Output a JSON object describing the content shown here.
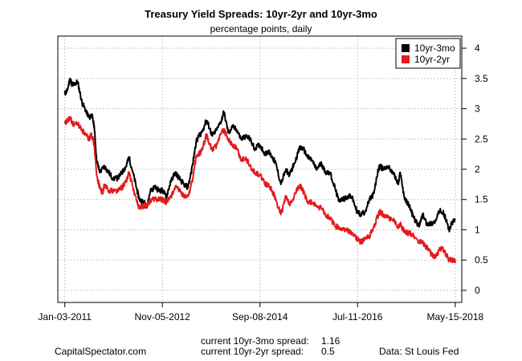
{
  "chart_data": {
    "type": "line",
    "title": "Treasury Yield Spreads: 10yr-2yr and 10yr-3mo",
    "subtitle": "percentage points, daily",
    "xlabel": "",
    "ylabel": "",
    "x_ticks": [
      "Jan-03-2011",
      "Nov-05-2012",
      "Sep-08-2014",
      "Jul-11-2016",
      "May-15-2018"
    ],
    "y_ticks": [
      "0",
      "0.5",
      "1",
      "1.5",
      "2",
      "2.5",
      "3",
      "3.5",
      "4"
    ],
    "ylim": [
      -0.2,
      4.2
    ],
    "grid": true,
    "legend_position": "top-right",
    "series": [
      {
        "name": "10yr-3mo",
        "color": "#000000",
        "x": [
          "2011-01-03",
          "2011-01-20",
          "2011-02-08",
          "2011-02-22",
          "2011-03-10",
          "2011-04-01",
          "2011-05-02",
          "2011-06-01",
          "2011-06-20",
          "2011-07-08",
          "2011-07-25",
          "2011-08-10",
          "2011-09-01",
          "2011-10-03",
          "2011-11-01",
          "2011-12-01",
          "2012-01-03",
          "2012-02-01",
          "2012-03-01",
          "2012-03-20",
          "2012-04-16",
          "2012-05-15",
          "2012-06-01",
          "2012-07-02",
          "2012-07-25",
          "2012-08-15",
          "2012-09-14",
          "2012-10-15",
          "2012-11-05",
          "2012-12-03",
          "2013-01-02",
          "2013-02-01",
          "2013-03-01",
          "2013-04-01",
          "2013-05-01",
          "2013-06-03",
          "2013-06-25",
          "2013-07-15",
          "2013-08-01",
          "2013-09-03",
          "2013-09-16",
          "2013-10-15",
          "2013-11-15",
          "2013-12-16",
          "2014-01-02",
          "2014-02-03",
          "2014-03-03",
          "2014-04-01",
          "2014-05-01",
          "2014-06-02",
          "2014-07-01",
          "2014-08-01",
          "2014-09-08",
          "2014-10-15",
          "2014-11-03",
          "2014-12-01",
          "2014-12-26",
          "2015-01-30",
          "2015-03-06",
          "2015-04-01",
          "2015-05-01",
          "2015-06-10",
          "2015-07-01",
          "2015-08-03",
          "2015-09-01",
          "2015-10-01",
          "2015-11-06",
          "2015-12-01",
          "2016-01-04",
          "2016-02-11",
          "2016-03-01",
          "2016-04-01",
          "2016-05-02",
          "2016-06-01",
          "2016-07-08",
          "2016-08-01",
          "2016-09-01",
          "2016-10-03",
          "2016-11-01",
          "2016-12-01",
          "2016-12-15",
          "2017-01-03",
          "2017-02-01",
          "2017-03-13",
          "2017-04-18",
          "2017-05-01",
          "2017-06-01",
          "2017-07-03",
          "2017-08-01",
          "2017-09-08",
          "2017-10-02",
          "2017-11-01",
          "2017-12-01",
          "2018-01-02",
          "2018-02-01",
          "2018-03-01",
          "2018-04-02",
          "2018-05-01",
          "2018-05-15"
        ],
        "values": [
          3.25,
          3.3,
          3.5,
          3.4,
          3.4,
          3.45,
          3.1,
          2.95,
          2.85,
          2.9,
          2.7,
          2.15,
          1.95,
          2.05,
          1.95,
          1.85,
          1.85,
          1.95,
          2.05,
          2.2,
          1.95,
          1.65,
          1.5,
          1.45,
          1.4,
          1.65,
          1.7,
          1.65,
          1.65,
          1.55,
          1.8,
          1.95,
          1.85,
          1.75,
          1.7,
          2.1,
          2.45,
          2.55,
          2.6,
          2.8,
          2.75,
          2.55,
          2.65,
          2.8,
          2.95,
          2.6,
          2.7,
          2.65,
          2.5,
          2.55,
          2.5,
          2.35,
          2.4,
          2.25,
          2.3,
          2.2,
          2.1,
          1.75,
          2.0,
          1.9,
          2.1,
          2.35,
          2.35,
          2.2,
          2.15,
          2.0,
          2.1,
          1.95,
          1.95,
          1.65,
          1.5,
          1.5,
          1.55,
          1.55,
          1.3,
          1.25,
          1.3,
          1.5,
          1.6,
          2.0,
          2.05,
          2.0,
          2.05,
          1.95,
          1.75,
          1.95,
          1.5,
          1.4,
          1.2,
          1.05,
          1.25,
          1.1,
          1.1,
          1.15,
          1.35,
          1.25,
          1.0,
          1.15,
          1.16
        ]
      },
      {
        "name": "10yr-2yr",
        "color": "#e41a1c",
        "x": [
          "2011-01-03",
          "2011-01-20",
          "2011-02-08",
          "2011-03-01",
          "2011-04-01",
          "2011-05-02",
          "2011-06-01",
          "2011-06-20",
          "2011-07-05",
          "2011-07-25",
          "2011-08-10",
          "2011-09-01",
          "2011-09-22",
          "2011-10-03",
          "2011-11-01",
          "2011-12-01",
          "2012-01-03",
          "2012-02-01",
          "2012-03-01",
          "2012-03-20",
          "2012-04-16",
          "2012-05-15",
          "2012-06-01",
          "2012-07-02",
          "2012-07-25",
          "2012-08-15",
          "2012-09-14",
          "2012-10-15",
          "2012-11-05",
          "2012-12-03",
          "2013-01-02",
          "2013-02-01",
          "2013-03-01",
          "2013-04-01",
          "2013-05-01",
          "2013-06-03",
          "2013-06-25",
          "2013-07-15",
          "2013-08-01",
          "2013-09-03",
          "2013-09-16",
          "2013-10-15",
          "2013-11-15",
          "2013-12-16",
          "2014-01-02",
          "2014-02-03",
          "2014-03-03",
          "2014-04-01",
          "2014-05-01",
          "2014-06-02",
          "2014-07-01",
          "2014-08-01",
          "2014-09-08",
          "2014-10-15",
          "2014-11-03",
          "2014-12-01",
          "2014-12-26",
          "2015-01-30",
          "2015-03-06",
          "2015-04-01",
          "2015-05-01",
          "2015-06-10",
          "2015-07-01",
          "2015-08-03",
          "2015-09-01",
          "2015-10-01",
          "2015-11-06",
          "2015-12-01",
          "2016-01-04",
          "2016-02-11",
          "2016-03-01",
          "2016-04-01",
          "2016-05-02",
          "2016-06-01",
          "2016-07-08",
          "2016-08-01",
          "2016-09-01",
          "2016-10-03",
          "2016-11-01",
          "2016-12-01",
          "2016-12-15",
          "2017-01-03",
          "2017-02-01",
          "2017-03-13",
          "2017-04-18",
          "2017-05-01",
          "2017-06-01",
          "2017-07-03",
          "2017-08-01",
          "2017-09-08",
          "2017-10-02",
          "2017-11-01",
          "2017-12-01",
          "2018-01-02",
          "2018-02-01",
          "2018-03-01",
          "2018-04-02",
          "2018-05-01",
          "2018-05-15"
        ],
        "values": [
          2.75,
          2.8,
          2.85,
          2.75,
          2.75,
          2.65,
          2.55,
          2.5,
          2.6,
          2.4,
          1.9,
          1.7,
          1.6,
          1.75,
          1.65,
          1.65,
          1.65,
          1.7,
          1.8,
          1.95,
          1.7,
          1.45,
          1.35,
          1.4,
          1.4,
          1.5,
          1.5,
          1.5,
          1.5,
          1.45,
          1.55,
          1.7,
          1.65,
          1.55,
          1.55,
          1.85,
          2.2,
          2.25,
          2.3,
          2.55,
          2.5,
          2.3,
          2.4,
          2.6,
          2.65,
          2.5,
          2.4,
          2.35,
          2.15,
          2.2,
          2.05,
          1.95,
          1.9,
          1.75,
          1.75,
          1.65,
          1.5,
          1.25,
          1.55,
          1.4,
          1.55,
          1.75,
          1.65,
          1.45,
          1.45,
          1.4,
          1.35,
          1.25,
          1.2,
          1.05,
          1.05,
          1.0,
          1.0,
          0.95,
          0.85,
          0.8,
          0.85,
          0.9,
          1.05,
          1.25,
          1.3,
          1.25,
          1.2,
          1.15,
          1.05,
          1.1,
          0.95,
          0.95,
          0.9,
          0.8,
          0.8,
          0.7,
          0.6,
          0.55,
          0.7,
          0.65,
          0.5,
          0.5,
          0.5
        ]
      }
    ]
  },
  "footer": {
    "site": "CapitalSpectator.com",
    "current_label_1": "current 10yr-3mo spread:",
    "current_value_1": "1.16",
    "current_label_2": "current 10yr-2yr spread:",
    "current_value_2": "0.5",
    "source": "Data: St Louis Fed"
  }
}
